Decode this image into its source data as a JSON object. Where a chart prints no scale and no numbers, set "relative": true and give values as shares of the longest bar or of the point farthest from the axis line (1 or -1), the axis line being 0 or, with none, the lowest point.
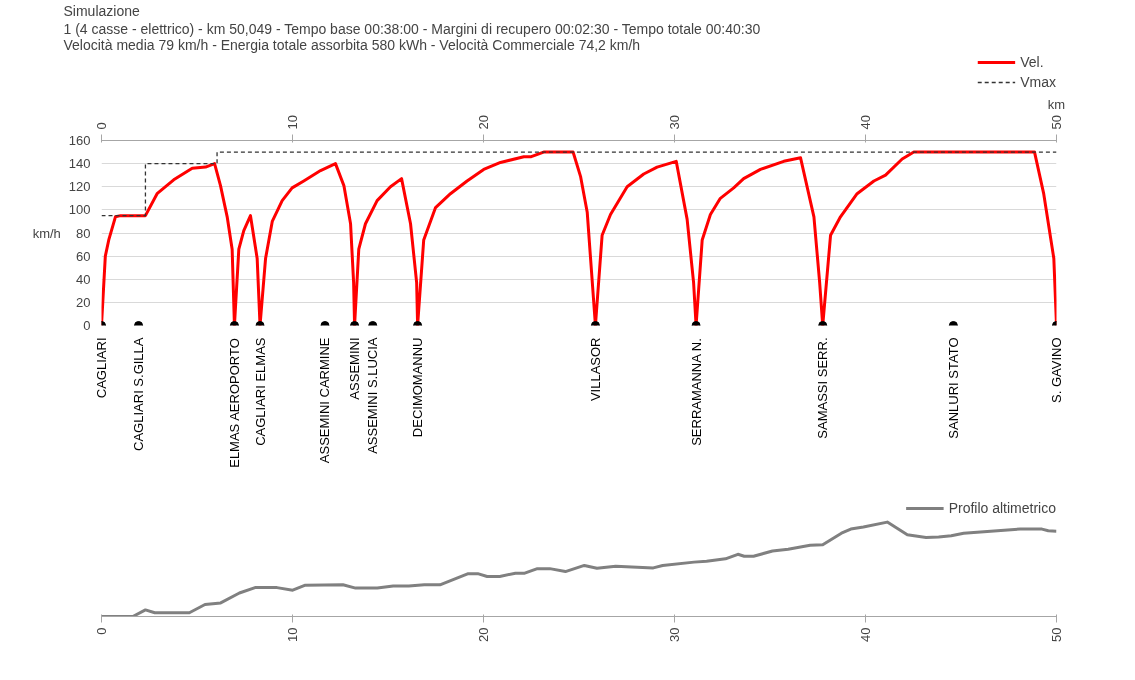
{
  "chart_data": [
    {
      "type": "line",
      "title": "Simulazione",
      "subtitle": "1 (4 casse - elettrico)  -  km 50,049  -  Tempo base 00:38:00  -  Margini di recupero 00:02:30  -  Tempo totale 00:40:30\nVelocità media 79 km/h  -  Energia totale assorbita 580 kWh  -  Velocità Commerciale 74,2 km/h",
      "xlabel": "km",
      "ylabel": "km/h",
      "xlim": [
        0,
        50
      ],
      "xticks": [
        0,
        10,
        20,
        30,
        40,
        50
      ],
      "ylim": [
        0,
        160
      ],
      "yticks": [
        0,
        20,
        40,
        60,
        80,
        100,
        120,
        140,
        160
      ],
      "grid": "y",
      "legend": "top right",
      "series": [
        {
          "name": "Vel.",
          "color": "#ff0000",
          "line_style": "solid",
          "x": [
            0,
            0.2,
            0.38,
            0.73,
            1.0,
            2.3,
            2.91,
            3.78,
            4.75,
            5.45,
            5.92,
            6.23,
            6.58,
            6.84,
            6.96,
            7.19,
            7.45,
            7.8,
            8.15,
            8.3,
            8.59,
            8.94,
            9.46,
            9.98,
            10.59,
            11.47,
            12.25,
            12.69,
            13.04,
            13.2,
            13.25,
            13.47,
            13.82,
            14.43,
            15.13,
            15.71,
            16.18,
            16.5,
            16.55,
            16.87,
            17.49,
            18.27,
            19.14,
            20.01,
            20.89,
            22.11,
            22.5,
            23.15,
            24.69,
            25.08,
            25.43,
            25.86,
            26.21,
            26.65,
            27.52,
            28.39,
            29.09,
            30.09,
            30.66,
            31.0,
            31.13,
            31.45,
            31.88,
            32.4,
            33.1,
            33.62,
            34.5,
            35.72,
            36.6,
            37.3,
            37.6,
            37.76,
            38.17,
            38.69,
            39.56,
            40.44,
            41.05,
            41.92,
            42.53,
            48.85,
            49.33,
            49.86,
            50
          ],
          "values": [
            0,
            60,
            74,
            94,
            95,
            95,
            114,
            126,
            136,
            137,
            140,
            121,
            94,
            66,
            0,
            66,
            82,
            95,
            58,
            0,
            58,
            90,
            108,
            119,
            125,
            134,
            140,
            121,
            88,
            37,
            0,
            66,
            88,
            108,
            120,
            127,
            88,
            37,
            0,
            74,
            102,
            114,
            125,
            135,
            141,
            146,
            146,
            150,
            150,
            129,
            98,
            0,
            78,
            96,
            120,
            131,
            137,
            142,
            92,
            37,
            0,
            74,
            96,
            110,
            119,
            127,
            135,
            142,
            145,
            94,
            37,
            0,
            78,
            94,
            114,
            125,
            130,
            144,
            150,
            150,
            114,
            58,
            0
          ]
        },
        {
          "name": "Vmax",
          "color": "#333333",
          "line_style": "dashed",
          "x": [
            0,
            2.3,
            2.3,
            6.05,
            6.05,
            50
          ],
          "values": [
            95,
            95,
            140,
            140,
            150,
            150
          ]
        },
        {
          "type": "scatter",
          "color": "#000000",
          "marker": "circle",
          "x": [
            0,
            1.94,
            6.96,
            8.3,
            11.7,
            13.25,
            14.2,
            16.55,
            25.86,
            31.13,
            37.76,
            44.6,
            50
          ],
          "values": [
            0,
            0,
            0,
            0,
            0,
            0,
            0,
            0,
            0,
            0,
            0,
            0,
            0
          ]
        }
      ],
      "annotations": [
        {
          "text": "CAGLIARI",
          "x": 0,
          "y": 0
        },
        {
          "text": "CAGLIARI S.GILLA",
          "x": 1.94,
          "y": 0
        },
        {
          "text": "ELMAS AEROPORTO",
          "x": 6.96,
          "y": 0
        },
        {
          "text": "CAGLIARI ELMAS",
          "x": 8.3,
          "y": 0
        },
        {
          "text": "ASSEMINI CARMINE",
          "x": 11.7,
          "y": 0
        },
        {
          "text": "ASSEMINI",
          "x": 13.25,
          "y": 0
        },
        {
          "text": "ASSEMINI S.LUCIA",
          "x": 14.2,
          "y": 0
        },
        {
          "text": "DECIMOMANNU",
          "x": 16.55,
          "y": 0
        },
        {
          "text": "VILLASOR",
          "x": 25.86,
          "y": 0
        },
        {
          "text": "SERRAMANNA N.",
          "x": 31.13,
          "y": 0
        },
        {
          "text": "SAMASSI SERR.",
          "x": 37.76,
          "y": 0
        },
        {
          "text": "SANLURI STATO",
          "x": 44.6,
          "y": 0
        },
        {
          "text": "S. GAVINO",
          "x": 50,
          "y": 0
        }
      ]
    },
    {
      "type": "line",
      "relative": true,
      "xlim": [
        0,
        50
      ],
      "xticks": [
        0,
        10,
        20,
        30,
        40,
        50
      ],
      "tick_labels": "x",
      "legend": "top right",
      "series": [
        {
          "name": "Profilo altimetrico",
          "color": "#808080",
          "x": [
            0,
            1.64,
            2.3,
            2.79,
            4.6,
            5.42,
            6.24,
            7.22,
            8.04,
            9.19,
            10.01,
            10.67,
            12.64,
            13.3,
            14.44,
            15.27,
            16.09,
            16.9,
            17.72,
            19.2,
            19.7,
            20.19,
            20.85,
            21.67,
            22.16,
            22.82,
            23.47,
            24.29,
            25.28,
            25.94,
            26.92,
            28.89,
            29.38,
            31.02,
            31.68,
            32.67,
            33.32,
            33.65,
            34.14,
            35.13,
            35.95,
            37.1,
            37.76,
            38.74,
            39.23,
            39.89,
            41.14,
            42.19,
            43.17,
            43.83,
            44.49,
            45.14,
            47.44,
            48.1,
            49.24,
            49.57,
            50
          ],
          "values": [
            0,
            0,
            0.07,
            0.04,
            0.04,
            0.127,
            0.144,
            0.249,
            0.306,
            0.306,
            0.279,
            0.332,
            0.336,
            0.301,
            0.301,
            0.323,
            0.323,
            0.336,
            0.336,
            0.454,
            0.454,
            0.424,
            0.424,
            0.459,
            0.459,
            0.507,
            0.507,
            0.476,
            0.541,
            0.511,
            0.533,
            0.515,
            0.541,
            0.576,
            0.585,
            0.611,
            0.659,
            0.638,
            0.638,
            0.694,
            0.712,
            0.755,
            0.76,
            0.882,
            0.926,
            0.948,
            1,
            0.865,
            0.838,
            0.843,
            0.856,
            0.882,
            0.917,
            0.926,
            0.926,
            0.908,
            0.904
          ]
        }
      ]
    }
  ]
}
